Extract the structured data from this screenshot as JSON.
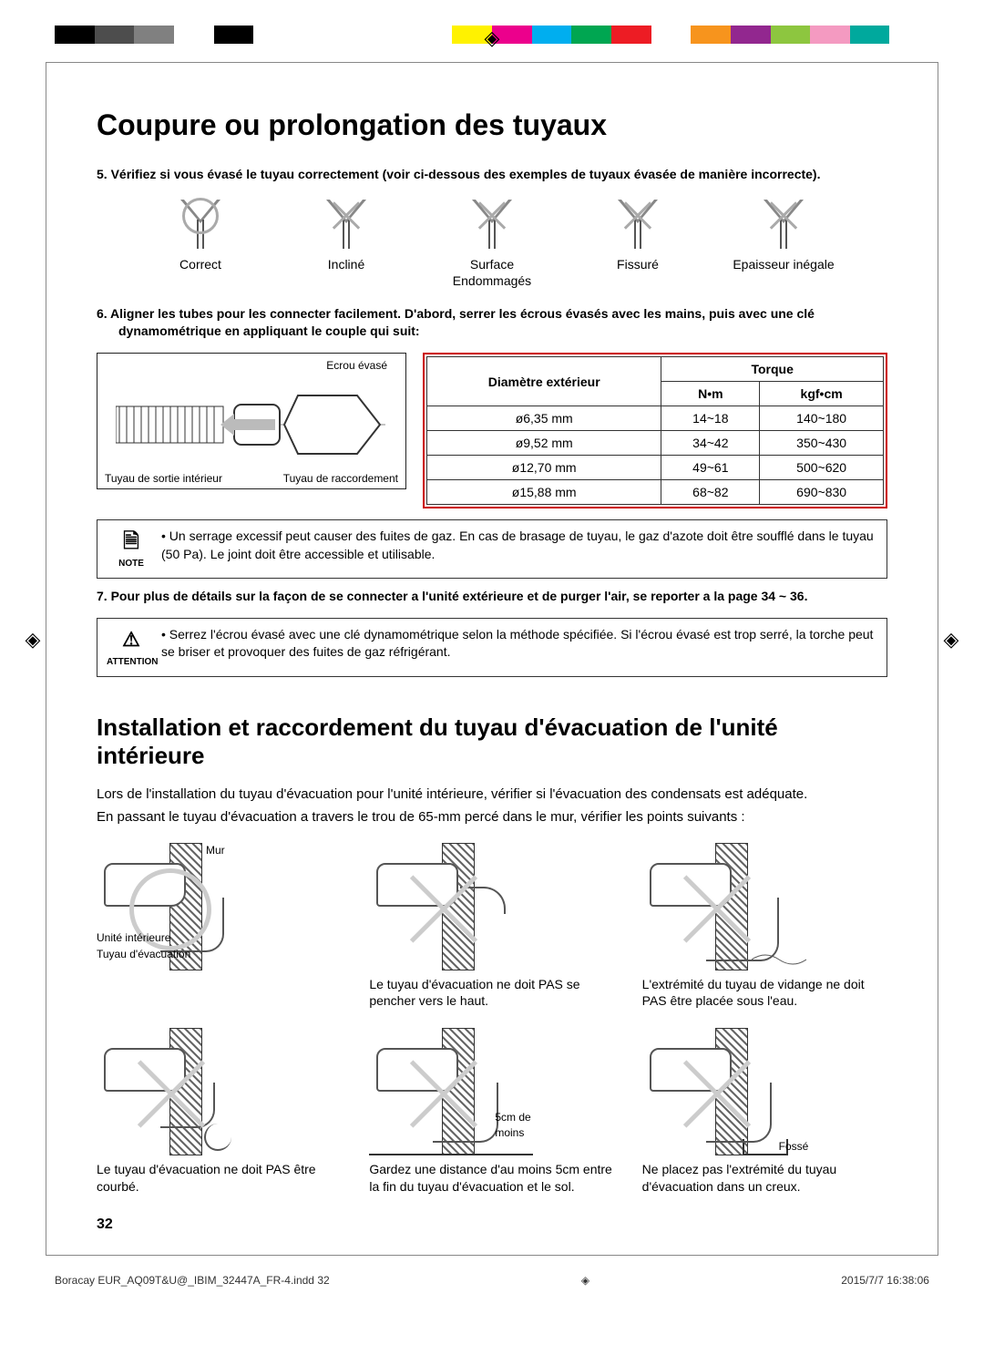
{
  "colorbar": [
    "#000000",
    "#4d4d4d",
    "#808080",
    "#ffffff",
    "#000000",
    "#ffffff",
    "#ffffff",
    "#ffffff",
    "#ffffff",
    "#ffffff",
    "#fff200",
    "#ec008c",
    "#00aeef",
    "#00a651",
    "#ed1c24",
    "#ffffff",
    "#f7941d",
    "#92278f",
    "#8dc63f",
    "#f49ac1",
    "#00a99d",
    "#ffffff"
  ],
  "title": "Coupure ou prolongation des tuyaux",
  "step5": "5.   Vérifiez si vous évasé le tuyau correctement (voir ci-dessous des exemples de tuyaux évasée de manière incorrecte).",
  "flare": {
    "items": [
      {
        "label": "Correct",
        "mark": "ok"
      },
      {
        "label": "Incliné",
        "mark": "x"
      },
      {
        "label": "Surface Endommagés",
        "mark": "x"
      },
      {
        "label": "Fissuré",
        "mark": "x"
      },
      {
        "label": "Epaisseur inégale",
        "mark": "x"
      }
    ]
  },
  "step6": "6.   Aligner les tubes pour les connecter facilement. D'abord, serrer les écrous évasés avec les mains, puis avec une clé dynamométrique en appliquant le couple qui suit:",
  "diagram": {
    "nut": "Ecrou évasé",
    "indoor": "Tuyau de sortie intérieur",
    "conn": "Tuyau de raccordement"
  },
  "torque_table": {
    "header_diam": "Diamètre extérieur",
    "header_torque": "Torque",
    "header_nm": "N•m",
    "header_kgf": "kgf•cm",
    "rows": [
      {
        "d": "ø6,35 mm",
        "nm": "14~18",
        "kgf": "140~180"
      },
      {
        "d": "ø9,52 mm",
        "nm": "34~42",
        "kgf": "350~430"
      },
      {
        "d": "ø12,70 mm",
        "nm": "49~61",
        "kgf": "500~620"
      },
      {
        "d": "ø15,88 mm",
        "nm": "68~82",
        "kgf": "690~830"
      }
    ]
  },
  "note1": {
    "label": "NOTE",
    "text": "Un serrage excessif peut causer des fuites de gaz. En cas de brasage de tuyau, le gaz d'azote doit être soufflé dans le tuyau (50 Pa). Le joint doit être accessible et utilisable."
  },
  "step7": "7.   Pour plus de détails sur la façon de se connecter a l'unité extérieure et de purger l'air, se reporter a la page 34 ~ 36.",
  "note2": {
    "label": "ATTENTION",
    "text": "Serrez l'écrou évasé avec une clé dynamométrique selon la méthode spécifiée. Si l'écrou évasé est trop serré, la torche peut se briser et provoquer des fuites de gaz réfrigérant."
  },
  "h2": "Installation et raccordement du tuyau d'évacuation de l'unité intérieure",
  "intro1": "Lors de l'installation du tuyau d'évacuation pour l'unité intérieure, vérifier si l'évacuation des condensats est adéquate.",
  "intro2": "En passant le tuyau d'évacuation a travers le trou de 65-mm percé dans le mur, vérifier les points suivants :",
  "drain": {
    "items": [
      {
        "mark": "ok",
        "caption": "",
        "labels": {
          "mur": "Mur",
          "unit": "Unité intérieure",
          "hose": "Tuyau d'évacuation"
        }
      },
      {
        "mark": "x",
        "caption": "Le tuyau d'évacuation ne doit PAS se pencher vers le haut."
      },
      {
        "mark": "x",
        "caption": "L'extrémité du tuyau de vidange ne doit PAS être placée sous l'eau."
      },
      {
        "mark": "x",
        "caption": "Le tuyau d'évacuation ne doit PAS être courbé."
      },
      {
        "mark": "x",
        "caption": "Gardez une distance d'au moins 5cm entre la fin du tuyau d'évacuation et le sol.",
        "labels": {
          "dist": "5cm de moins"
        }
      },
      {
        "mark": "x",
        "caption": "Ne placez pas l'extrémité du tuyau d'évacuation dans un creux.",
        "labels": {
          "fosse": "Fossé"
        }
      }
    ]
  },
  "page_num": "32",
  "footer": {
    "file": "Boracay EUR_AQ09T&U@_IBIM_32447A_FR-4.indd   32",
    "date": "2015/7/7   16:38:06"
  }
}
